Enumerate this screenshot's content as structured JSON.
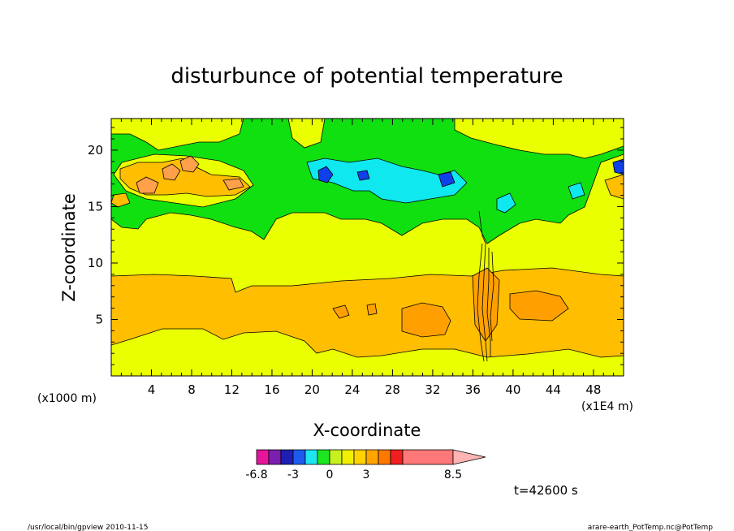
{
  "chart_data": {
    "type": "heatmap",
    "title": "disturbunce of potential temperature",
    "xlabel": "X-coordinate",
    "ylabel": "Z-coordinate",
    "x_unit_left": "(x1000 m)",
    "x_unit_right": "(x1E4 m)",
    "xlim": [
      0,
      51
    ],
    "ylim": [
      0,
      22.8
    ],
    "x_ticks": [
      4,
      8,
      12,
      16,
      20,
      24,
      28,
      32,
      36,
      40,
      44,
      48
    ],
    "y_ticks": [
      5,
      10,
      15,
      20
    ],
    "time_label": "t=42600 s",
    "colorbar": {
      "labels": [
        {
          "text": "-6.8",
          "index": 0
        },
        {
          "text": "-3",
          "index": 3
        },
        {
          "text": "0",
          "index": 6
        },
        {
          "text": "3",
          "index": 9
        },
        {
          "text": "8.5",
          "index": 13
        }
      ],
      "colors": [
        "#e6159b",
        "#7a1fb0",
        "#1e1eb4",
        "#1e5aeb",
        "#1ee6f0",
        "#1ee61e",
        "#c8f01e",
        "#f0f000",
        "#ffd200",
        "#ffa500",
        "#ff7800",
        "#f01e1e",
        "#ff7878"
      ],
      "extend_color": "#ffb4b4"
    },
    "field_colors": {
      "band_0_3": "#ffbe00",
      "band_3_6": "#ffa000",
      "band_0_neg": "#eaff00",
      "band_neg_low": "#eaff00",
      "green": "#10e010",
      "cyan": "#10e8f0",
      "blue": "#1040e8",
      "pale_blue": "#70d8ff",
      "orange2": "#ffa04a",
      "orange3": "#ff7830"
    }
  },
  "footer": {
    "left": "/usr/local/bin/gpview   2010-11-15",
    "right": "arare-earth_PotTemp.nc@PotTemp"
  }
}
